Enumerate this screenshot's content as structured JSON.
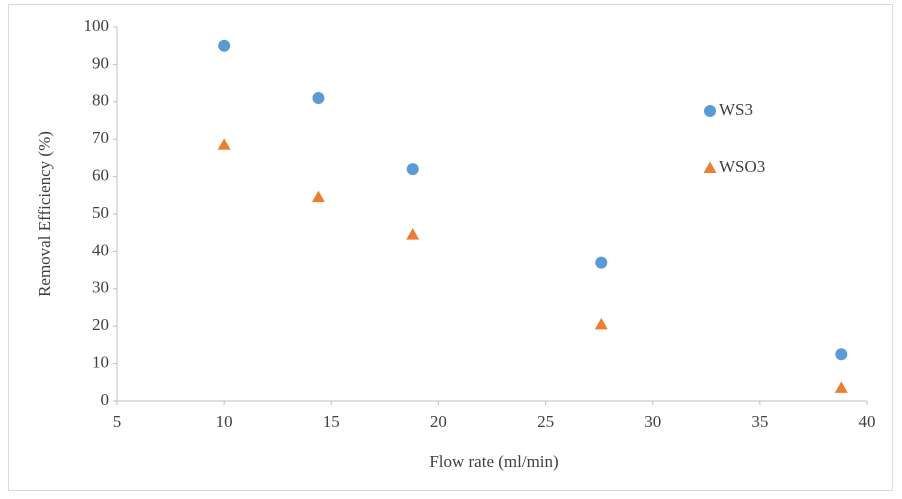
{
  "chart_data": {
    "type": "scatter",
    "x_label": "Flow rate (ml/min)",
    "y_label": "Removal Efficiency  (%)",
    "series": [
      {
        "name": "WS3",
        "color": "#5b9bd5",
        "marker": "circle",
        "x": [
          10,
          14.4,
          18.8,
          27.6,
          38.8
        ],
        "values": [
          95,
          81,
          62,
          37,
          12.5
        ]
      },
      {
        "name": "WSO3",
        "color": "#ed7d31",
        "marker": "triangle",
        "x": [
          10,
          14.4,
          18.8,
          27.6,
          38.8
        ],
        "values": [
          68.5,
          54.5,
          44.5,
          20.5,
          3.5
        ]
      }
    ],
    "xlim": [
      5,
      40
    ],
    "xticks": [
      5,
      10,
      15,
      20,
      25,
      30,
      35,
      40
    ],
    "ylim": [
      0,
      100
    ],
    "yticks": [
      0,
      10,
      20,
      30,
      40,
      50,
      60,
      70,
      80,
      90,
      100
    ],
    "grid": false,
    "legend": "right"
  }
}
